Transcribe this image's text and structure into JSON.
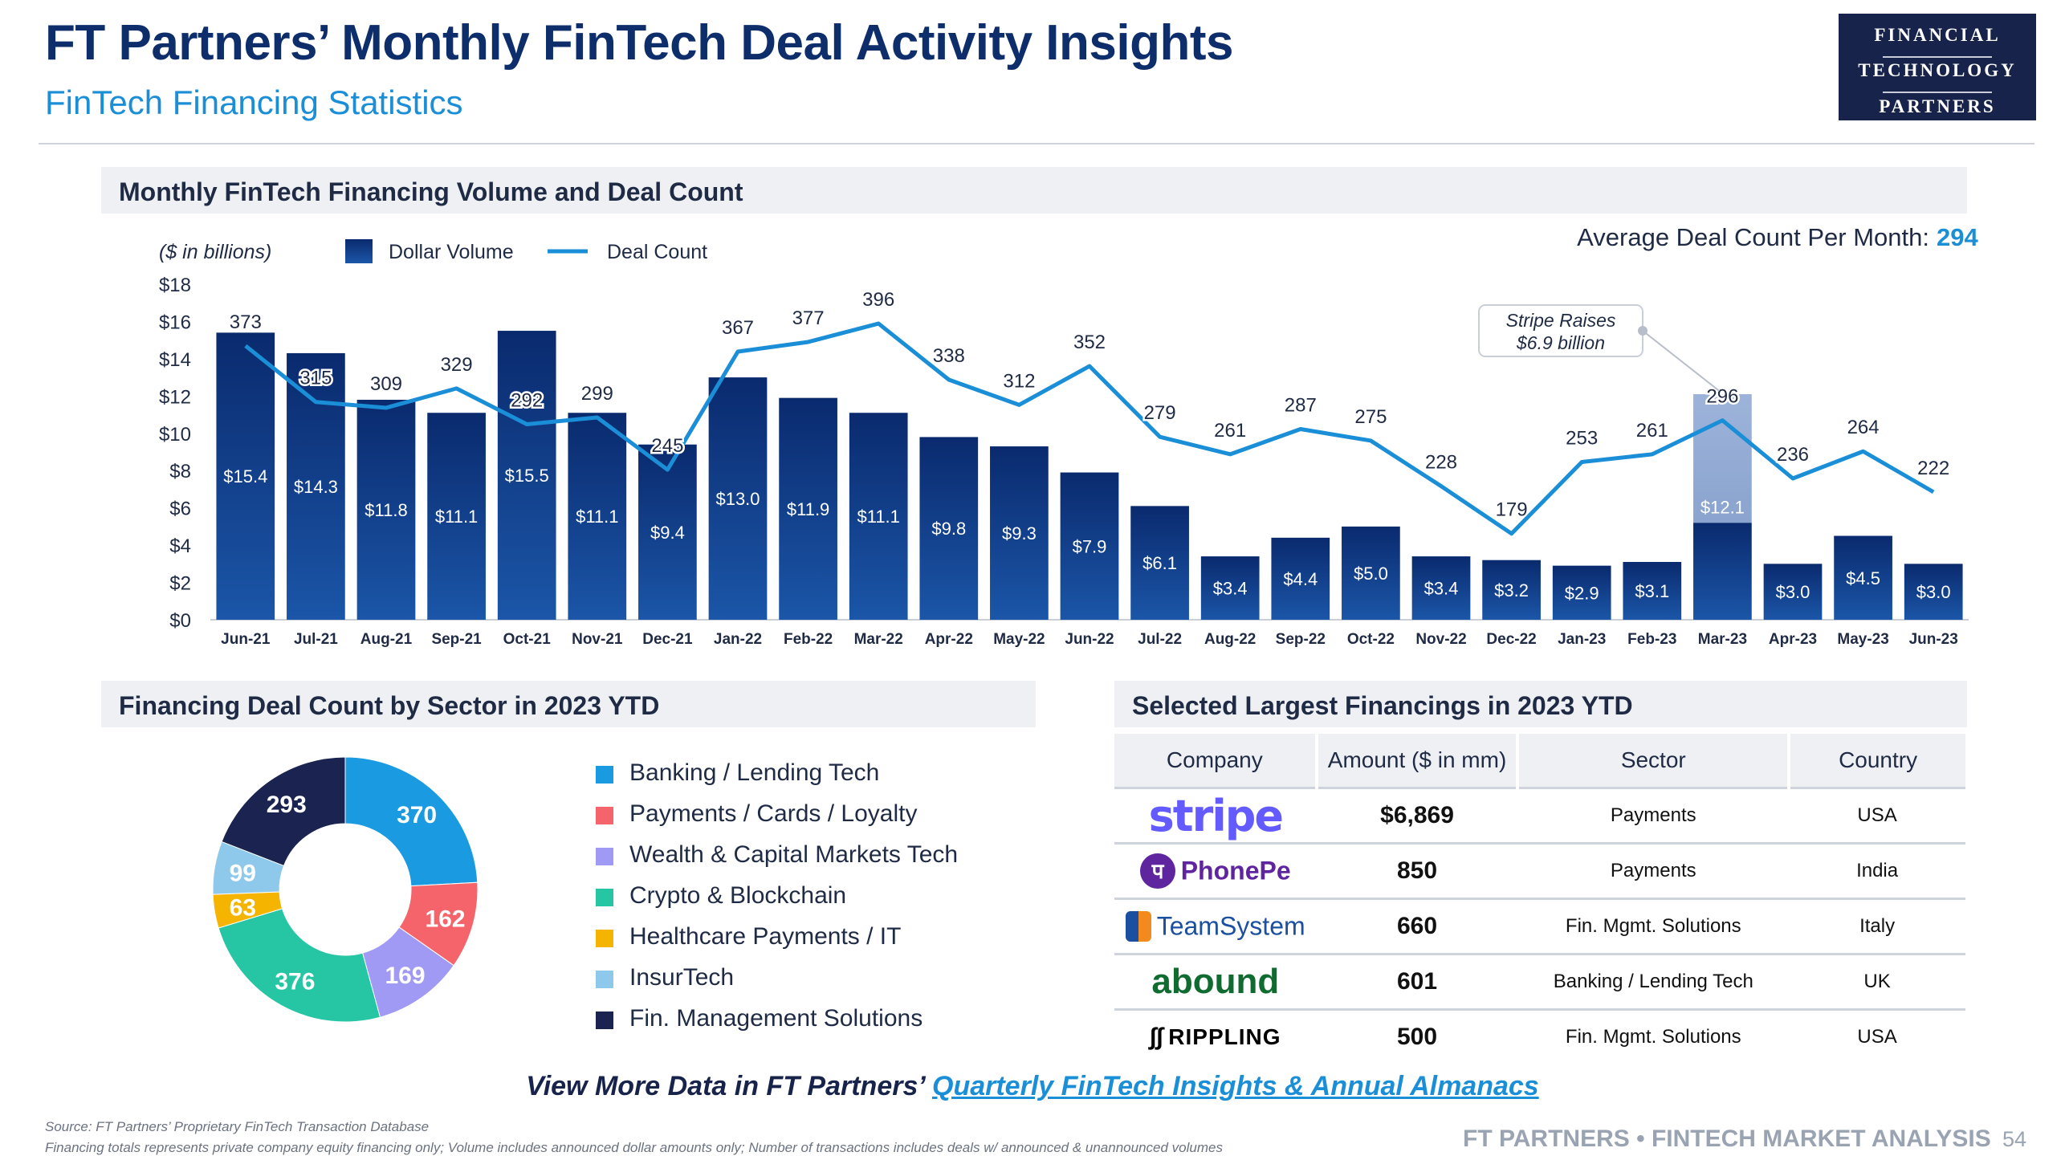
{
  "header": {
    "title": "FT Partners’ Monthly FinTech Deal Activity Insights",
    "subtitle": "FinTech Financing Statistics",
    "logo_lines": [
      "FINANCIAL",
      "TECHNOLOGY",
      "PARTNERS"
    ]
  },
  "sections": {
    "volume": "Monthly FinTech Financing Volume and Deal Count",
    "sector": "Financing Deal Count by Sector in 2023 YTD",
    "largest": "Selected Largest Financings in 2023 YTD"
  },
  "colors": {
    "navy": "#0d2d6b",
    "accent_blue": "#1a8ed6",
    "bar_dark": "#0a2a6e",
    "bar_light": "#1b56a8",
    "highlight_bar": "#8ea8d2"
  },
  "chart_data": [
    {
      "type": "bar",
      "units_label": "($ in billions)",
      "legend": [
        "Dollar Volume",
        "Deal Count"
      ],
      "avg_label": "Average Deal Count Per Month:",
      "avg_value": "294",
      "annotation": [
        "Stripe Raises",
        "$6.9 billion"
      ],
      "annotation_month": "Mar-23",
      "categories": [
        "Jun-21",
        "Jul-21",
        "Aug-21",
        "Sep-21",
        "Oct-21",
        "Nov-21",
        "Dec-21",
        "Jan-22",
        "Feb-22",
        "Mar-22",
        "Apr-22",
        "May-22",
        "Jun-22",
        "Jul-22",
        "Aug-22",
        "Sep-22",
        "Oct-22",
        "Nov-22",
        "Dec-22",
        "Jan-23",
        "Feb-23",
        "Mar-23",
        "Apr-23",
        "May-23",
        "Jun-23"
      ],
      "series": [
        {
          "name": "Dollar Volume",
          "type": "bar",
          "values": [
            15.4,
            14.3,
            11.8,
            11.1,
            15.5,
            11.1,
            9.4,
            13.0,
            11.9,
            11.1,
            9.8,
            9.3,
            7.9,
            6.1,
            3.4,
            4.4,
            5.0,
            3.4,
            3.2,
            2.9,
            3.1,
            12.1,
            3.0,
            4.5,
            3.0
          ],
          "labels": [
            "$15.4",
            "$14.3",
            "$11.8",
            "$11.1",
            "$15.5",
            "$11.1",
            "$9.4",
            "$13.0",
            "$11.9",
            "$11.1",
            "$9.8",
            "$9.3",
            "$7.9",
            "$6.1",
            "$3.4",
            "$4.4",
            "$5.0",
            "$3.4",
            "$3.2",
            "$2.9",
            "$3.1",
            "$12.1",
            "$3.0",
            "$4.5",
            "$3.0"
          ],
          "highlight_index": 21,
          "highlight_excluded": 6.9
        },
        {
          "name": "Deal Count",
          "type": "line",
          "values": [
            373,
            315,
            309,
            329,
            292,
            299,
            245,
            367,
            377,
            396,
            338,
            312,
            352,
            279,
            261,
            287,
            275,
            228,
            179,
            253,
            261,
            296,
            236,
            264,
            222
          ]
        }
      ],
      "y_ticks": [
        "$0",
        "$2",
        "$4",
        "$6",
        "$8",
        "$10",
        "$12",
        "$14",
        "$16",
        "$18"
      ],
      "ylim": [
        0,
        18
      ],
      "grid": false
    },
    {
      "type": "pie",
      "donut": true,
      "categories": [
        "Banking / Lending Tech",
        "Payments / Cards / Loyalty",
        "Wealth & Capital Markets Tech",
        "Crypto & Blockchain",
        "Healthcare Payments / IT",
        "InsurTech",
        "Fin. Management Solutions"
      ],
      "values": [
        370,
        162,
        169,
        376,
        63,
        99,
        293
      ],
      "colors": [
        "#1a9ae0",
        "#f5646a",
        "#a09af5",
        "#26c6a4",
        "#f5b400",
        "#8ec8ea",
        "#1b2450"
      ]
    }
  ],
  "table": {
    "headers": [
      "Company",
      "Amount ($ in mm)",
      "Sector",
      "Country"
    ],
    "rows": [
      {
        "company": "stripe",
        "amount": "$6,869",
        "sector": "Payments",
        "country": "USA"
      },
      {
        "company": "PhonePe",
        "amount": "850",
        "sector": "Payments",
        "country": "India"
      },
      {
        "company": "TeamSystem",
        "amount": "660",
        "sector": "Fin. Mgmt. Solutions",
        "country": "Italy"
      },
      {
        "company": "abound",
        "amount": "601",
        "sector": "Banking / Lending Tech",
        "country": "UK"
      },
      {
        "company": "RIPPLING",
        "amount": "500",
        "sector": "Fin. Mgmt. Solutions",
        "country": "USA"
      }
    ]
  },
  "footer": {
    "cta_prefix": "View More Data in FT Partners’ ",
    "cta_link": "Quarterly FinTech Insights & Annual Almanacs",
    "source": "Source: FT Partners’ Proprietary FinTech Transaction Database",
    "note": "Financing totals represents private company equity financing only; Volume includes announced dollar amounts only; Number of transactions includes deals w/ announced & unannounced volumes",
    "brand": "FT PARTNERS • FINTECH MARKET ANALYSIS",
    "page": "54"
  }
}
